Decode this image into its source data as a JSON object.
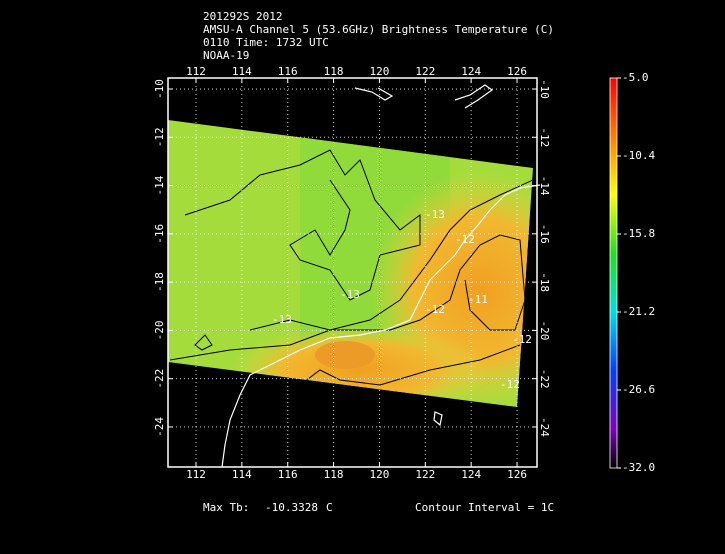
{
  "header": {
    "lines": [
      "201292S 2012",
      "AMSU-A Channel 5 (53.6GHz) Brightness Temperature (C)",
      "0110 Time: 1732 UTC",
      "NOAA-19"
    ]
  },
  "map": {
    "lon_ticks": [
      112,
      114,
      116,
      118,
      120,
      122,
      124,
      126
    ],
    "lat_ticks": [
      -10,
      -12,
      -14,
      -16,
      -18,
      -20,
      -22,
      -24
    ],
    "contour_labels": [
      "-13",
      "-13",
      "-13",
      "-12",
      "-12",
      "-11",
      "-12",
      "-12"
    ]
  },
  "colorbar": {
    "ticks": [
      {
        "value": -5,
        "label": "-5.0"
      },
      {
        "value": -10.4,
        "label": "-10.4"
      },
      {
        "value": -15.8,
        "label": "-15.8"
      },
      {
        "value": -21.2,
        "label": "-21.2"
      },
      {
        "value": -26.6,
        "label": "-26.6"
      },
      {
        "value": -32,
        "label": "-32.0"
      }
    ]
  },
  "footer": {
    "max_label": "Max Tb:",
    "max_value": "-10.3328",
    "max_unit": "C",
    "contour_interval": "Contour Interval = 1C"
  }
}
